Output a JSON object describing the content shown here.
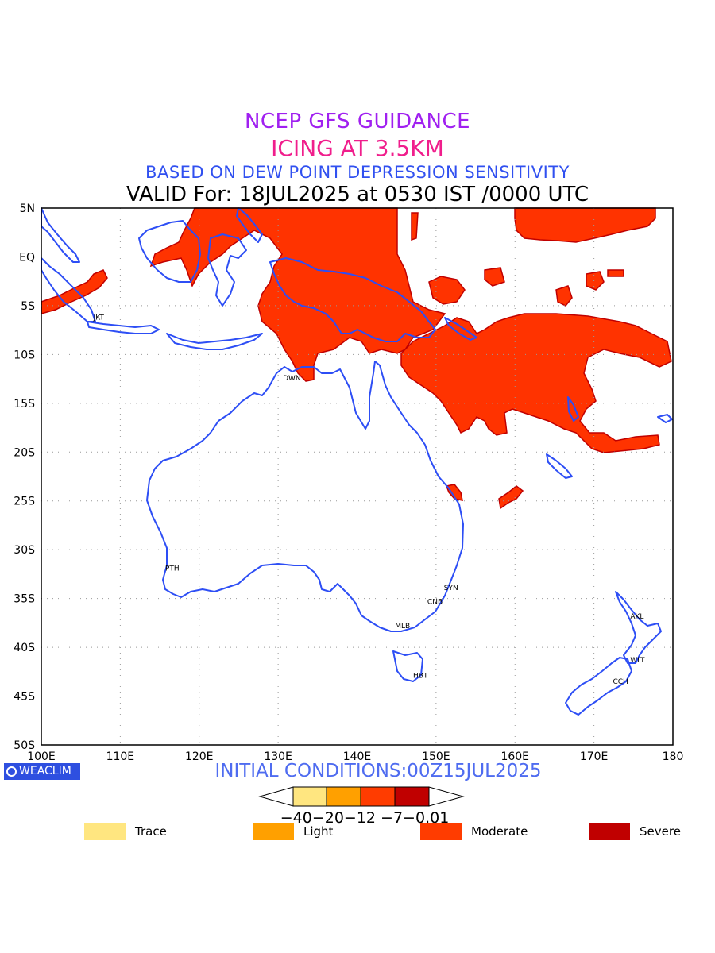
{
  "titles": {
    "line1": "NCEP GFS GUIDANCE",
    "line2": "ICING AT 3.5KM",
    "line3": "BASED ON DEW POINT DEPRESSION SENSITIVITY",
    "line4": "VALID For: 18JUL2025 at 0530 IST /0000 UTC"
  },
  "axes": {
    "lat_labels": [
      "5N",
      "EQ",
      "5S",
      "10S",
      "15S",
      "20S",
      "25S",
      "30S",
      "35S",
      "40S",
      "45S",
      "50S"
    ],
    "lon_labels": [
      "100E",
      "110E",
      "120E",
      "130E",
      "140E",
      "150E",
      "160E",
      "170E",
      "180"
    ]
  },
  "cities": [
    {
      "name": "JKT",
      "lon": 106.8,
      "lat": -6.2
    },
    {
      "name": "DWN",
      "lon": 130.8,
      "lat": -12.4
    },
    {
      "name": "PTH",
      "lon": 115.9,
      "lat": -31.9
    },
    {
      "name": "SYN",
      "lon": 151.2,
      "lat": -33.9
    },
    {
      "name": "CNB",
      "lon": 149.1,
      "lat": -35.3
    },
    {
      "name": "MLB",
      "lon": 145.0,
      "lat": -37.8
    },
    {
      "name": "HBT",
      "lon": 147.3,
      "lat": -42.9
    },
    {
      "name": "AKL",
      "lon": 174.8,
      "lat": -36.8
    },
    {
      "name": "WLT",
      "lon": 174.8,
      "lat": -41.3
    },
    {
      "name": "CCH",
      "lon": 172.6,
      "lat": -43.5
    }
  ],
  "branding": {
    "logo_text": "WEACLIM"
  },
  "initial_conditions": "INITIAL CONDITIONS:00Z15JUL2025",
  "colorbar": {
    "tick_labels": [
      "-40",
      "-20",
      "-12",
      "-7",
      "-0.01"
    ],
    "tick_text": "−40−20−12 −7−0.01",
    "colors": [
      "#ffe680",
      "#ffa000",
      "#ff3c00",
      "#c00000"
    ]
  },
  "legend": [
    {
      "label": "Trace",
      "color": "#ffe680"
    },
    {
      "label": "Light",
      "color": "#ffa000"
    },
    {
      "label": "Moderate",
      "color": "#ff3c00"
    },
    {
      "label": "Severe",
      "color": "#c00000"
    }
  ],
  "colors": {
    "coast": "#2d4ef5",
    "grid": "#999999",
    "icing_moderate": "#ff3300",
    "icing_severe_edge": "#c00000"
  }
}
